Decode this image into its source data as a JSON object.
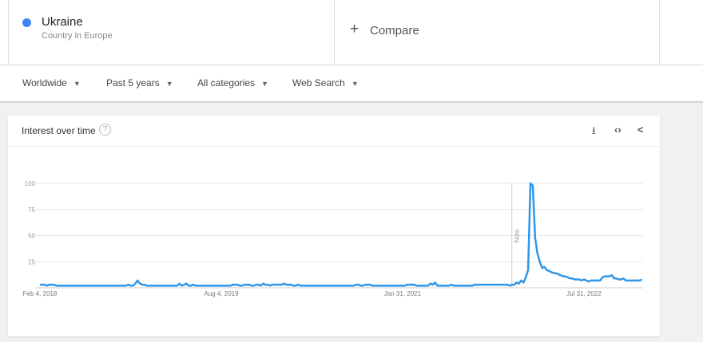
{
  "term": {
    "name": "Ukraine",
    "subtitle": "Country in Europe",
    "color": "#4285f4"
  },
  "compare": {
    "icon": "plus-icon",
    "symbol": "+",
    "label": "Compare"
  },
  "filters": [
    {
      "label": "Worldwide"
    },
    {
      "label": "Past 5 years"
    },
    {
      "label": "All categories"
    },
    {
      "label": "Web Search"
    }
  ],
  "card": {
    "title": "Interest over time",
    "help_symbol": "?",
    "actions": [
      {
        "icon": "download-icon",
        "symbol": "⭳"
      },
      {
        "icon": "embed-code-icon",
        "symbol": "‹›"
      },
      {
        "icon": "share-icon",
        "symbol": "<"
      }
    ]
  },
  "chart_data": {
    "type": "line",
    "title": "",
    "xlabel": "",
    "ylabel": "",
    "ylim": [
      0,
      100
    ],
    "grid": true,
    "y_ticks": [
      "100",
      "75",
      "50",
      "25"
    ],
    "x_ticks": [
      {
        "label": "Feb 4, 2018",
        "week": 0
      },
      {
        "label": "Aug 4, 2019",
        "week": 78
      },
      {
        "label": "Jan 31, 2021",
        "week": 156
      },
      {
        "label": "Jul 31, 2022",
        "week": 234
      }
    ],
    "annotation": {
      "label": "Note",
      "week": 203
    },
    "series_color": "#2f96e8",
    "series": [
      {
        "values": [
          3,
          3,
          3,
          2,
          3,
          3,
          3,
          2,
          2,
          2,
          2,
          2,
          2,
          2,
          2,
          2,
          2,
          2,
          2,
          2,
          2,
          2,
          2,
          2,
          2,
          2,
          2,
          2,
          2,
          2,
          2,
          2,
          2,
          2,
          2,
          2,
          2,
          2,
          3,
          2,
          2,
          4,
          7,
          4,
          3,
          3,
          2,
          2,
          2,
          2,
          2,
          2,
          2,
          2,
          2,
          2,
          2,
          2,
          2,
          2,
          4,
          2,
          3,
          4,
          2,
          2,
          3,
          2,
          2,
          2,
          2,
          2,
          2,
          2,
          2,
          2,
          2,
          2,
          2,
          2,
          2,
          2,
          2,
          3,
          3,
          3,
          2,
          2,
          3,
          3,
          3,
          2,
          2,
          3,
          3,
          2,
          4,
          3,
          3,
          2,
          3,
          3,
          3,
          3,
          3,
          4,
          3,
          3,
          3,
          2,
          2,
          3,
          2,
          2,
          2,
          2,
          2,
          2,
          2,
          2,
          2,
          2,
          2,
          2,
          2,
          2,
          2,
          2,
          2,
          2,
          2,
          2,
          2,
          2,
          2,
          2,
          3,
          3,
          2,
          2,
          3,
          3,
          3,
          2,
          2,
          2,
          2,
          2,
          2,
          2,
          2,
          2,
          2,
          2,
          2,
          2,
          2,
          2,
          3,
          3,
          3,
          3,
          2,
          2,
          2,
          2,
          2,
          2,
          4,
          3,
          5,
          2,
          2,
          2,
          2,
          2,
          2,
          3,
          2,
          2,
          2,
          2,
          2,
          2,
          2,
          2,
          2,
          3,
          3,
          3,
          3,
          3,
          3,
          3,
          3,
          3,
          3,
          3,
          3,
          3,
          3,
          3,
          2,
          3,
          3,
          5,
          4,
          7,
          5,
          10,
          17,
          100,
          98,
          48,
          33,
          25,
          19,
          20,
          17,
          16,
          15,
          14,
          14,
          13,
          12,
          11,
          11,
          10,
          9,
          9,
          8,
          8,
          8,
          7,
          8,
          7,
          6,
          7,
          7,
          7,
          7,
          7,
          10,
          11,
          11,
          11,
          12,
          9,
          9,
          8,
          8,
          9,
          7,
          7,
          7,
          7,
          7,
          7,
          7,
          8
        ]
      }
    ]
  }
}
